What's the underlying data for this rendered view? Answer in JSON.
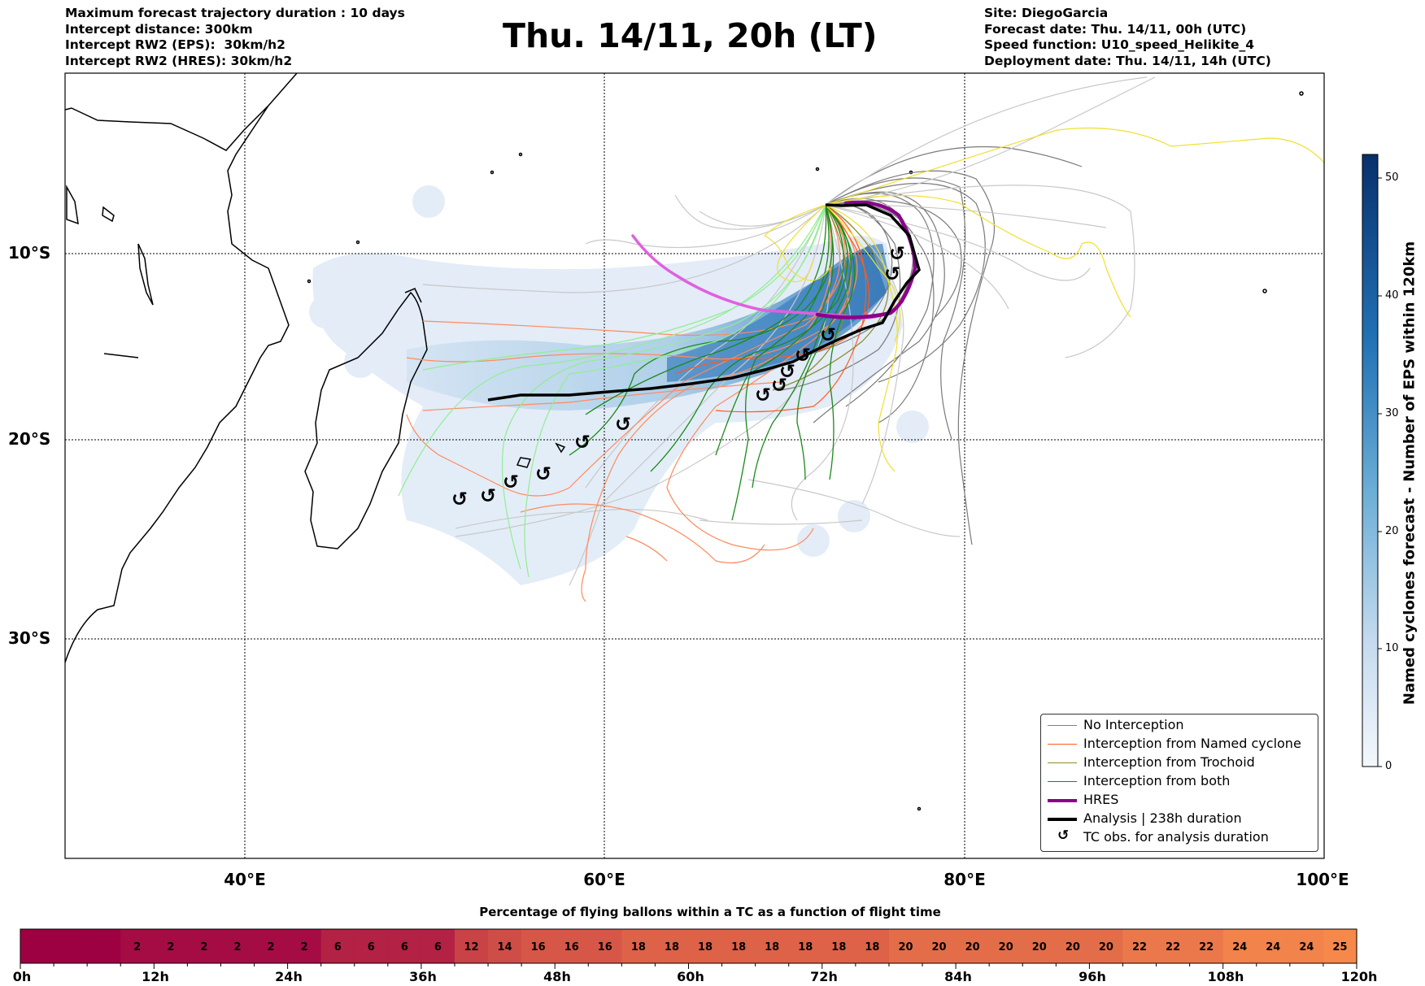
{
  "header": {
    "left": [
      "Maximum forecast trajectory duration : 10 days",
      "Intercept distance: 300km",
      "Intercept RW2 (EPS):  30km/h2",
      "Intercept RW2 (HRES): 30km/h2"
    ],
    "title": "Thu. 14/11, 20h (LT)",
    "right": [
      "Site: DiegoGarcia",
      "Forecast date: Thu. 14/11, 00h (UTC)",
      "Speed function: U10_speed_Helikite_4",
      "Deployment date: Thu. 14/11, 14h (UTC)"
    ]
  },
  "map": {
    "lat_labels": [
      "10°S",
      "20°S",
      "30°S"
    ],
    "lon_labels": [
      "40°E",
      "60°E",
      "80°E",
      "100°E"
    ],
    "extent": {
      "lon": [
        30,
        100
      ],
      "lat": [
        -42,
        0
      ]
    },
    "gridlines": {
      "lon": [
        40,
        60,
        80
      ],
      "lat": [
        -10,
        -20,
        -30
      ]
    }
  },
  "colorbar": {
    "title": "Named cyclones forecast - Number of EPS within 120km",
    "ticks": [
      "0",
      "10",
      "20",
      "30",
      "40",
      "50"
    ],
    "range": [
      0,
      52
    ],
    "colors": [
      "#f4f8fc",
      "#08306b"
    ]
  },
  "legend": {
    "items": [
      {
        "label": "No Interception",
        "color": "#808080",
        "style": "thin"
      },
      {
        "label": "Interception from Named cyclone",
        "color": "#ff5a1e",
        "style": "thin"
      },
      {
        "label": "Interception from Trochoid",
        "color": "#8b8b2a",
        "style": "thin"
      },
      {
        "label": "Interception from both",
        "color": "#1a8a1a",
        "style": "thin"
      },
      {
        "label": "HRES",
        "color": "#8b008b",
        "style": "thick"
      },
      {
        "label": "Analysis | 238h duration",
        "color": "#000000",
        "style": "thick"
      },
      {
        "label": "TC obs. for analysis duration",
        "color": "#000000",
        "style": "symbol",
        "symbol": "↺"
      }
    ]
  },
  "chart_data": {
    "type": "heatmap",
    "title": "Percentage of flying ballons within a TC as a function of flight time",
    "x_ticks": [
      "0h",
      "12h",
      "24h",
      "36h",
      "48h",
      "60h",
      "72h",
      "84h",
      "96h",
      "108h",
      "120h"
    ],
    "xlim_hours": [
      0,
      120
    ],
    "bin_hours": 3,
    "values": [
      null,
      null,
      null,
      2,
      2,
      2,
      2,
      2,
      2,
      6,
      6,
      6,
      6,
      12,
      14,
      16,
      16,
      16,
      18,
      18,
      18,
      18,
      18,
      18,
      18,
      18,
      20,
      20,
      20,
      20,
      20,
      20,
      20,
      22,
      22,
      22,
      24,
      24,
      24,
      25
    ],
    "color_low": "#9e0142",
    "color_high": "#f6884b"
  }
}
